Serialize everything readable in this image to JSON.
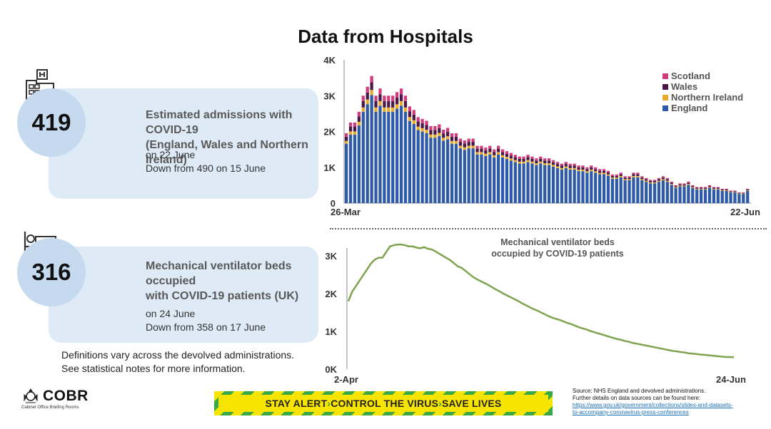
{
  "title": "Data from Hospitals",
  "admissions": {
    "value": "419",
    "label_line1": "Estimated admissions with COVID-19",
    "label_line2": "(England, Wales and Northern Ireland)",
    "date": "on 22 June",
    "change": "Down from 490 on 15 June"
  },
  "ventilators": {
    "value": "316",
    "label_line1": "Mechanical ventilator beds occupied",
    "label_line2": "with COVID-19 patients (UK)",
    "date": "on 24 June",
    "change": "Down from 358 on 17 June"
  },
  "definitions_line1": "Definitions vary across the devolved administrations.",
  "definitions_line2": "See statistical notes for more information.",
  "logo": {
    "name": "COBR",
    "subtitle": "Cabinet Office Briefing Rooms"
  },
  "banner": {
    "part1": "STAY ALERT",
    "part2": "CONTROL THE VIRUS",
    "part3": "SAVE LIVES",
    "arrow": "›"
  },
  "source": {
    "line1": "Source: NHS England and devolved administrations.",
    "line2": "Further details on data sources can be found here:",
    "link1": "https://www.gov.uk/government/collections/slides-and-datasets-",
    "link2": "to-accompany-coronavirus-press-conferences"
  },
  "colors": {
    "england": "#2e5aa8",
    "ni": "#e8ab2a",
    "wales": "#4a1848",
    "scotland": "#d23c7c",
    "line": "#7fa44f"
  },
  "chart_data": [
    {
      "type": "bar",
      "stacked": true,
      "title": "",
      "x_start_label": "26-Mar",
      "x_end_label": "22-Jun",
      "y_ticks": [
        0,
        1000,
        2000,
        3000,
        4000
      ],
      "y_tick_labels": [
        "0",
        "1K",
        "2K",
        "3K",
        "4K"
      ],
      "ylim": [
        0,
        4000
      ],
      "legend": [
        "Scotland",
        "Wales",
        "Northern Ireland",
        "England"
      ],
      "legend_position": "top-right",
      "totals": [
        1950,
        2250,
        2250,
        2550,
        3000,
        3250,
        3550,
        3000,
        3200,
        3000,
        3000,
        3000,
        3100,
        3200,
        3000,
        2700,
        2600,
        2400,
        2350,
        2300,
        2150,
        2150,
        2200,
        2050,
        2100,
        1950,
        1950,
        1800,
        1750,
        1800,
        1800,
        1600,
        1600,
        1550,
        1600,
        1500,
        1600,
        1500,
        1450,
        1400,
        1350,
        1300,
        1300,
        1350,
        1300,
        1250,
        1300,
        1250,
        1250,
        1200,
        1150,
        1100,
        1150,
        1100,
        1100,
        1050,
        1050,
        1000,
        1050,
        1000,
        950,
        950,
        900,
        800,
        800,
        850,
        750,
        750,
        850,
        850,
        750,
        700,
        650,
        650,
        700,
        750,
        700,
        600,
        500,
        550,
        550,
        600,
        500,
        450,
        450,
        450,
        500,
        450,
        450,
        400,
        400,
        350,
        350,
        300,
        300,
        400
      ],
      "england_share": 0.85,
      "ni_share": 0.04,
      "wales_share": 0.06,
      "scotland_share": 0.05
    },
    {
      "type": "line",
      "title_line1": "Mechanical ventilator beds",
      "title_line2": "occupied by COVID-19 patients",
      "x_start_label": "2-Apr",
      "x_end_label": "24-Jun",
      "y_ticks": [
        0,
        1000,
        2000,
        3000
      ],
      "y_tick_labels": [
        "0K",
        "1K",
        "2K",
        "3K"
      ],
      "ylim": [
        0,
        3400
      ],
      "values": [
        1800,
        2050,
        2200,
        2350,
        2500,
        2650,
        2800,
        2900,
        2950,
        2950,
        3100,
        3250,
        3280,
        3300,
        3300,
        3280,
        3250,
        3250,
        3220,
        3200,
        3230,
        3190,
        3170,
        3120,
        3060,
        3000,
        2940,
        2880,
        2800,
        2720,
        2680,
        2600,
        2520,
        2440,
        2380,
        2330,
        2280,
        2230,
        2170,
        2110,
        2060,
        2000,
        1950,
        1900,
        1850,
        1800,
        1740,
        1690,
        1640,
        1590,
        1550,
        1500,
        1450,
        1400,
        1360,
        1330,
        1300,
        1260,
        1220,
        1190,
        1150,
        1110,
        1080,
        1050,
        1010,
        980,
        950,
        920,
        890,
        860,
        830,
        800,
        780,
        750,
        730,
        700,
        680,
        660,
        640,
        620,
        600,
        580,
        560,
        540,
        520,
        500,
        480,
        470,
        450,
        440,
        420,
        410,
        400,
        390,
        380,
        370,
        360,
        350,
        340,
        330,
        320,
        320,
        316
      ]
    }
  ]
}
